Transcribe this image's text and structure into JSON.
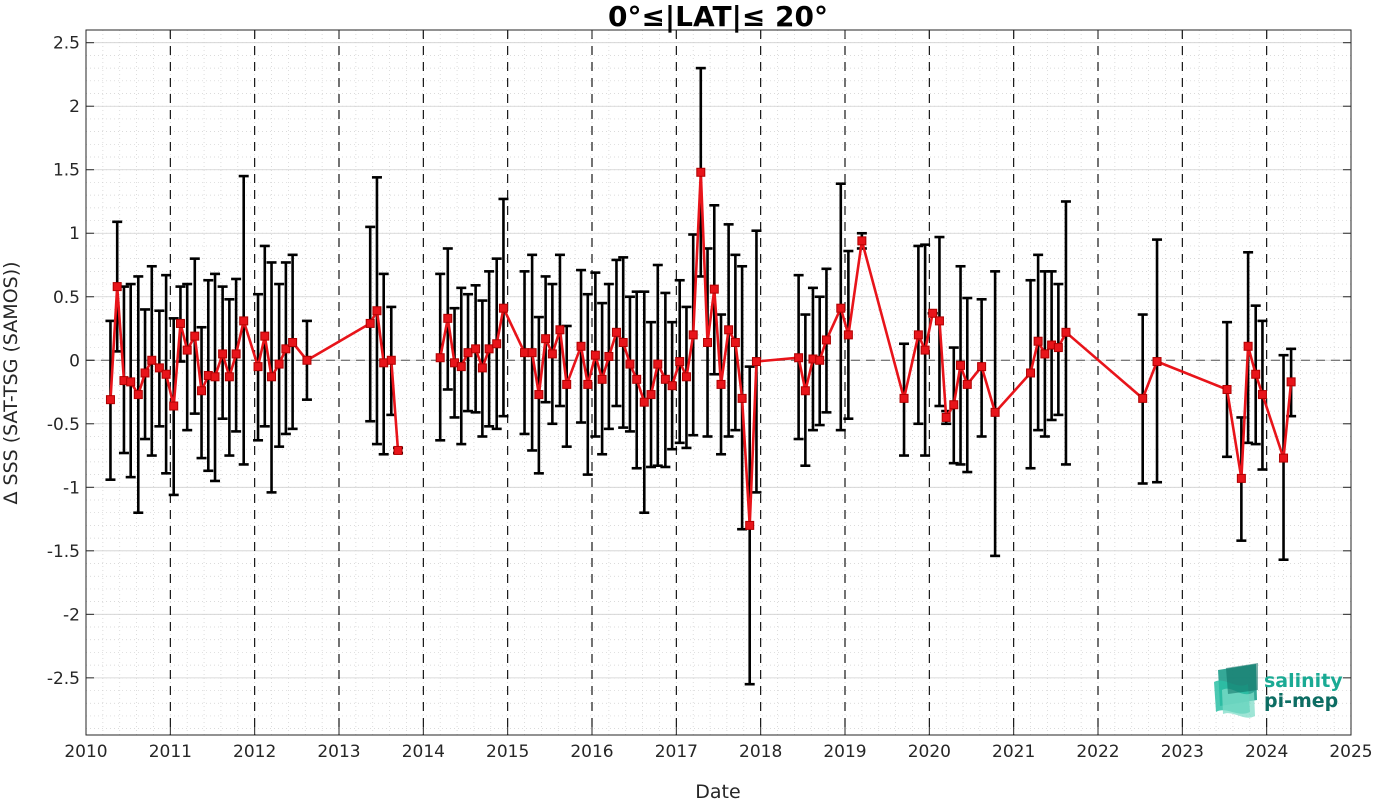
{
  "colors": {
    "series": "#e8141a",
    "errorbar": "#000000",
    "logo_top": "#1aaa94",
    "logo_bottom": "#0d6d63"
  },
  "logo": {
    "line1": "salinity",
    "line2": "pi-mep"
  },
  "chart_data": {
    "type": "line",
    "title": "0°≤|LAT|≤ 20°",
    "xlabel": "Date",
    "ylabel": "Δ SSS (SAT-TSG (SAMOS))",
    "xlim": [
      2010,
      2025
    ],
    "ylim": [
      -2.95,
      2.6
    ],
    "xticks": [
      2010,
      2011,
      2012,
      2013,
      2014,
      2015,
      2016,
      2017,
      2018,
      2019,
      2020,
      2021,
      2022,
      2023,
      2024,
      2025
    ],
    "yticks": [
      2.5,
      2,
      1.5,
      1,
      0.5,
      0,
      -0.5,
      -1,
      -1.5,
      -2,
      -2.5
    ],
    "ytick_labels": [
      "2.5",
      "2",
      "1.5",
      "1",
      "0.5",
      "0",
      "-0.5",
      "-1",
      "-1.5",
      "-2",
      "-2.5"
    ],
    "grid": "dotted minor grid, dashed year lines",
    "zero_line": "dashed",
    "series": [
      {
        "marker": "square",
        "segments": [
          [
            [
              2010.29,
              -0.31,
              0.31,
              -0.94
            ],
            [
              2010.37,
              0.58,
              1.09,
              0.07
            ],
            [
              2010.45,
              -0.16,
              0.58,
              -0.73
            ],
            [
              2010.53,
              -0.17,
              0.6,
              -0.92
            ],
            [
              2010.62,
              -0.27,
              0.66,
              -1.2
            ],
            [
              2010.7,
              -0.1,
              0.4,
              -0.62
            ],
            [
              2010.78,
              0.0,
              0.74,
              -0.75
            ],
            [
              2010.87,
              -0.06,
              0.39,
              -0.52
            ],
            [
              2010.95,
              -0.11,
              0.67,
              -0.89
            ],
            [
              2011.04,
              -0.36,
              0.33,
              -1.06
            ],
            [
              2011.12,
              0.29,
              0.58,
              -0.01
            ],
            [
              2011.2,
              0.08,
              0.6,
              -0.55
            ],
            [
              2011.29,
              0.19,
              0.8,
              -0.42
            ],
            [
              2011.37,
              -0.24,
              0.26,
              -0.77
            ],
            [
              2011.45,
              -0.12,
              0.63,
              -0.87
            ],
            [
              2011.53,
              -0.13,
              0.68,
              -0.95
            ],
            [
              2011.62,
              0.05,
              0.58,
              -0.46
            ],
            [
              2011.7,
              -0.13,
              0.48,
              -0.75
            ],
            [
              2011.78,
              0.05,
              0.64,
              -0.56
            ],
            [
              2011.87,
              0.31,
              1.45,
              -0.82
            ],
            [
              2012.04,
              -0.05,
              0.52,
              -0.63
            ],
            [
              2012.12,
              0.19,
              0.9,
              -0.52
            ],
            [
              2012.2,
              -0.13,
              0.77,
              -1.04
            ],
            [
              2012.29,
              -0.03,
              0.6,
              -0.68
            ],
            [
              2012.37,
              0.09,
              0.77,
              -0.58
            ],
            [
              2012.45,
              0.14,
              0.83,
              -0.54
            ],
            [
              2012.62,
              0.0,
              0.31,
              -0.31
            ],
            [
              2013.37,
              0.29,
              1.05,
              -0.48
            ],
            [
              2013.45,
              0.39,
              1.44,
              -0.66
            ],
            [
              2013.53,
              -0.02,
              0.68,
              -0.74
            ],
            [
              2013.62,
              0.0,
              0.42,
              -0.43
            ],
            [
              2013.7,
              -0.71,
              -0.69,
              -0.73
            ]
          ],
          [
            [
              2014.2,
              0.02,
              0.68,
              -0.63
            ],
            [
              2014.29,
              0.33,
              0.88,
              -0.23
            ],
            [
              2014.37,
              -0.02,
              0.41,
              -0.45
            ],
            [
              2014.45,
              -0.05,
              0.57,
              -0.66
            ],
            [
              2014.53,
              0.06,
              0.52,
              -0.4
            ],
            [
              2014.62,
              0.09,
              0.59,
              -0.41
            ],
            [
              2014.7,
              -0.06,
              0.47,
              -0.6
            ],
            [
              2014.78,
              0.09,
              0.7,
              -0.52
            ],
            [
              2014.87,
              0.13,
              0.8,
              -0.54
            ],
            [
              2014.95,
              0.41,
              1.27,
              -0.44
            ],
            [
              2015.2,
              0.06,
              0.7,
              -0.58
            ],
            [
              2015.29,
              0.06,
              0.83,
              -0.71
            ],
            [
              2015.37,
              -0.27,
              0.34,
              -0.89
            ],
            [
              2015.45,
              0.17,
              0.66,
              -0.33
            ],
            [
              2015.53,
              0.05,
              0.6,
              -0.5
            ],
            [
              2015.62,
              0.24,
              0.83,
              -0.36
            ],
            [
              2015.7,
              -0.19,
              0.27,
              -0.68
            ],
            [
              2015.87,
              0.11,
              0.71,
              -0.49
            ],
            [
              2015.95,
              -0.19,
              0.52,
              -0.9
            ],
            [
              2016.04,
              0.04,
              0.69,
              -0.6
            ],
            [
              2016.12,
              -0.15,
              0.45,
              -0.74
            ],
            [
              2016.2,
              0.03,
              0.6,
              -0.54
            ],
            [
              2016.29,
              0.22,
              0.79,
              -0.36
            ],
            [
              2016.37,
              0.14,
              0.81,
              -0.53
            ],
            [
              2016.45,
              -0.03,
              0.5,
              -0.56
            ],
            [
              2016.53,
              -0.15,
              0.54,
              -0.85
            ],
            [
              2016.62,
              -0.33,
              0.54,
              -1.2
            ],
            [
              2016.7,
              -0.27,
              0.3,
              -0.84
            ],
            [
              2016.78,
              -0.03,
              0.75,
              -0.83
            ],
            [
              2016.87,
              -0.15,
              0.53,
              -0.84
            ],
            [
              2016.95,
              -0.2,
              0.3,
              -0.7
            ],
            [
              2017.04,
              -0.01,
              0.63,
              -0.65
            ],
            [
              2017.12,
              -0.13,
              0.42,
              -0.69
            ],
            [
              2017.2,
              0.2,
              0.99,
              -0.59
            ],
            [
              2017.29,
              1.48,
              2.3,
              0.66
            ],
            [
              2017.37,
              0.14,
              0.88,
              -0.6
            ],
            [
              2017.45,
              0.56,
              1.22,
              -0.11
            ],
            [
              2017.53,
              -0.19,
              0.36,
              -0.74
            ],
            [
              2017.62,
              0.24,
              1.07,
              -0.6
            ],
            [
              2017.7,
              0.14,
              0.83,
              -0.55
            ],
            [
              2017.78,
              -0.3,
              0.74,
              -1.33
            ],
            [
              2017.87,
              -1.3,
              -0.05,
              -2.55
            ],
            [
              2017.95,
              -0.01,
              1.02,
              -1.04
            ],
            [
              2018.45,
              0.02,
              0.67,
              -0.62
            ],
            [
              2018.53,
              -0.24,
              0.36,
              -0.83
            ],
            [
              2018.62,
              0.01,
              0.57,
              -0.55
            ],
            [
              2018.7,
              0.0,
              0.5,
              -0.51
            ],
            [
              2018.78,
              0.16,
              0.72,
              -0.41
            ],
            [
              2018.95,
              0.41,
              1.39,
              -0.55
            ],
            [
              2019.04,
              0.2,
              0.86,
              -0.46
            ],
            [
              2019.2,
              0.94,
              1.0,
              0.88
            ],
            [
              2019.7,
              -0.3,
              0.13,
              -0.75
            ],
            [
              2019.87,
              0.2,
              0.9,
              -0.5
            ],
            [
              2019.95,
              0.08,
              0.91,
              -0.75
            ],
            [
              2020.04,
              0.37,
              0.37,
              0.37
            ],
            [
              2020.12,
              0.31,
              0.97,
              -0.36
            ],
            [
              2020.2,
              -0.45,
              -0.4,
              -0.5
            ],
            [
              2020.29,
              -0.35,
              0.1,
              -0.81
            ],
            [
              2020.37,
              -0.04,
              0.74,
              -0.82
            ],
            [
              2020.45,
              -0.19,
              0.49,
              -0.88
            ],
            [
              2020.62,
              -0.05,
              0.48,
              -0.6
            ],
            [
              2020.78,
              -0.41,
              0.7,
              -1.54
            ],
            [
              2021.2,
              -0.1,
              0.63,
              -0.85
            ],
            [
              2021.29,
              0.15,
              0.83,
              -0.55
            ],
            [
              2021.37,
              0.05,
              0.7,
              -0.6
            ],
            [
              2021.45,
              0.12,
              0.7,
              -0.47
            ],
            [
              2021.53,
              0.1,
              0.6,
              -0.43
            ],
            [
              2021.62,
              0.22,
              1.25,
              -0.82
            ],
            [
              2022.53,
              -0.3,
              0.36,
              -0.97
            ],
            [
              2022.7,
              -0.01,
              0.95,
              -0.96
            ],
            [
              2023.53,
              -0.23,
              0.3,
              -0.76
            ],
            [
              2023.7,
              -0.93,
              -0.45,
              -1.42
            ],
            [
              2023.78,
              0.11,
              0.85,
              -0.65
            ],
            [
              2023.87,
              -0.11,
              0.43,
              -0.66
            ],
            [
              2023.95,
              -0.27,
              0.31,
              -0.86
            ],
            [
              2024.2,
              -0.77,
              0.04,
              -1.57
            ],
            [
              2024.29,
              -0.17,
              0.09,
              -0.44
            ]
          ]
        ]
      }
    ]
  }
}
